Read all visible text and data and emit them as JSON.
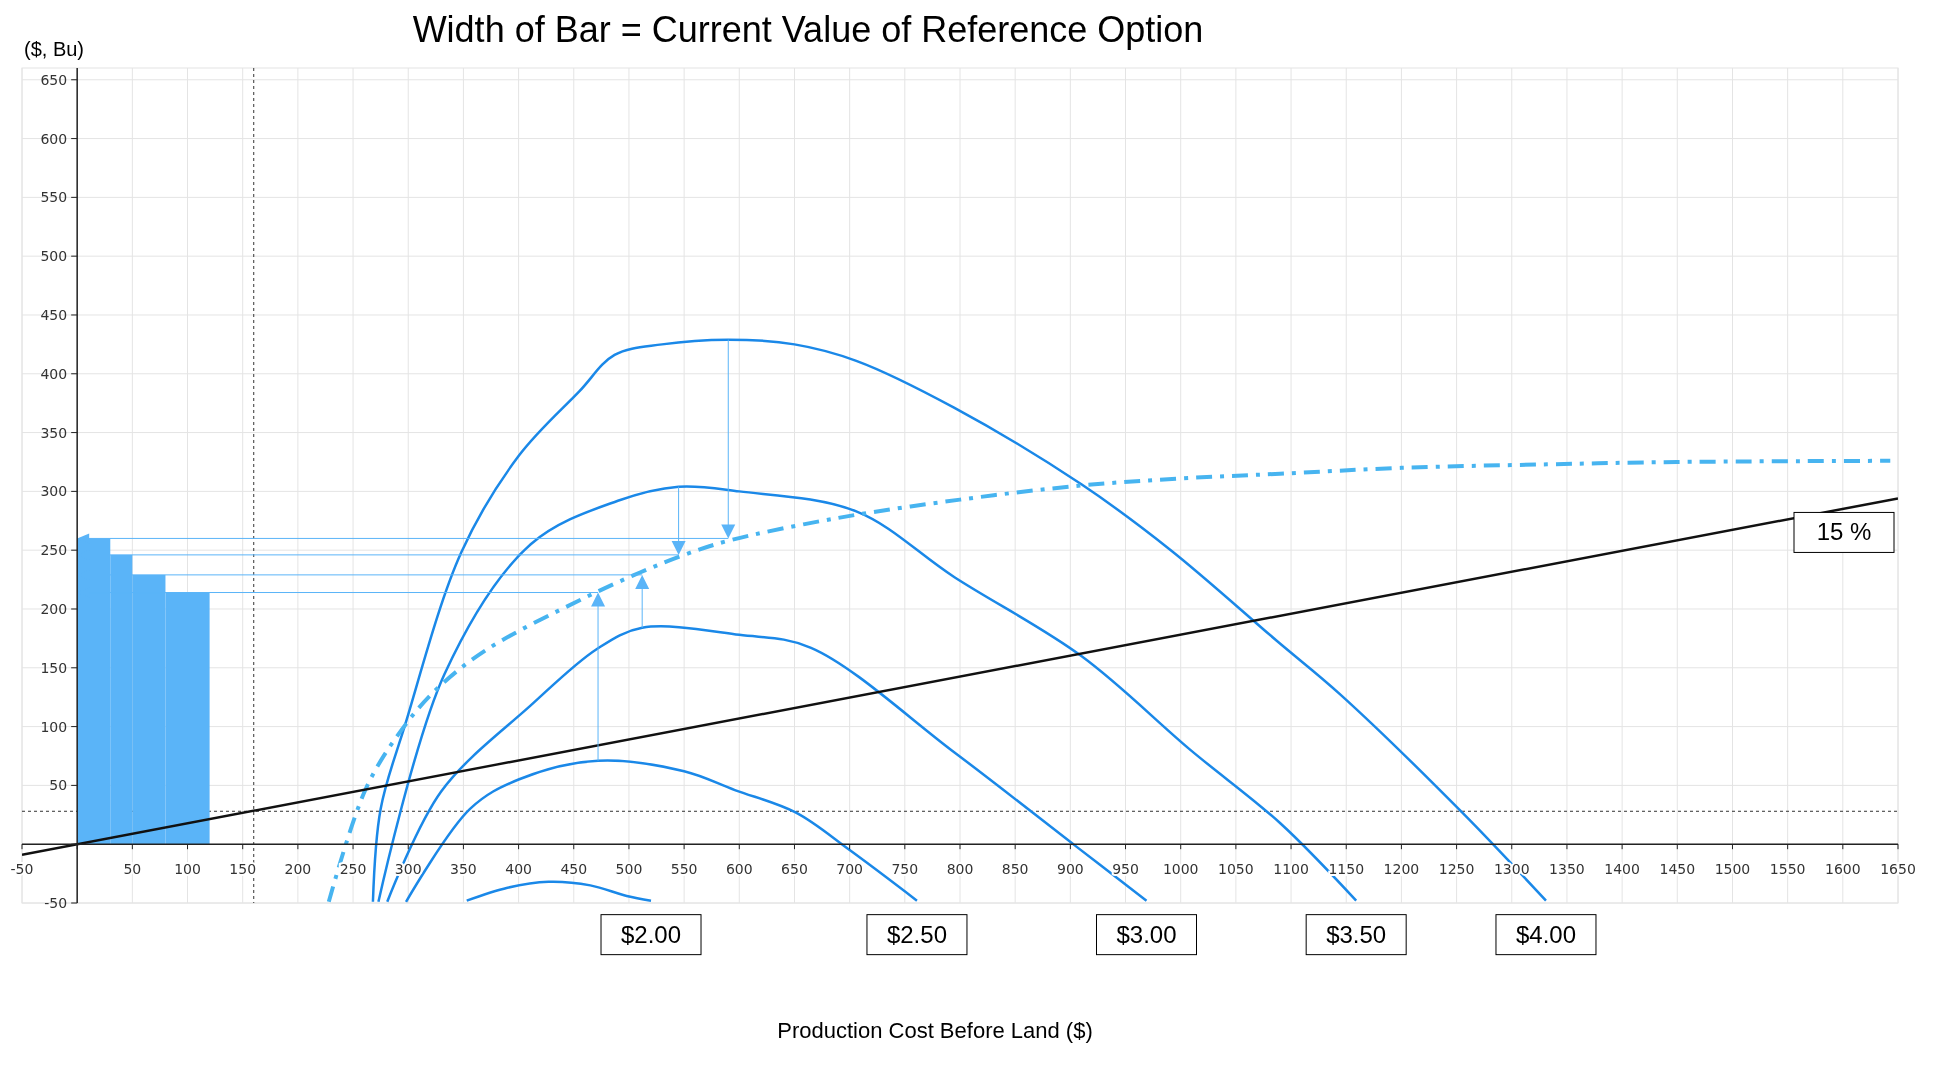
{
  "chart_data": {
    "type": "line",
    "title": "Width of Bar = Current Value of Reference Option",
    "xlabel": "Production Cost Before Land ($)",
    "ylabel": "($, Bu)",
    "xlim": [
      -50,
      1650
    ],
    "ylim": [
      -50,
      660
    ],
    "xticks": [
      -50,
      {
        "value": 0,
        "label": null
      },
      50,
      100,
      150,
      200,
      250,
      300,
      350,
      400,
      450,
      500,
      550,
      600,
      650,
      700,
      750,
      800,
      850,
      900,
      950,
      1000,
      1050,
      1100,
      1150,
      1200,
      1250,
      1300,
      1350,
      1400,
      1450,
      1500,
      1550,
      1600,
      1650
    ],
    "yticks": [
      -50,
      {
        "value": 0,
        "label": null
      },
      50,
      100,
      150,
      200,
      250,
      300,
      350,
      400,
      450,
      500,
      550,
      600,
      650
    ],
    "grid": true,
    "series": [
      {
        "type": "histogram",
        "color": "#5ab4f8",
        "bins": [
          0,
          30,
          50,
          80,
          120
        ],
        "values": [
          260,
          246,
          229,
          214
        ]
      },
      {
        "name": "$2.00",
        "color": "#1a88e8",
        "x": [
          353,
          390,
          427,
          465,
          498,
          520
        ],
        "values": [
          -48,
          -37,
          -32,
          -35,
          -44,
          -48
        ]
      },
      {
        "name": "$2.50",
        "color": "#1a88e8",
        "x": [
          298,
          356,
          400,
          472,
          550,
          596,
          651,
          700,
          761
        ],
        "values": [
          -49,
          30,
          55,
          71,
          62,
          46,
          27,
          -5,
          -48
        ]
      },
      {
        "name": "$3.00",
        "color": "#1a88e8",
        "x": [
          281,
          330,
          411,
          471,
          512,
          600,
          665,
          795,
          904,
          969
        ],
        "values": [
          -49,
          45,
          118,
          166,
          184,
          178,
          167,
          78,
          -1,
          -48
        ]
      },
      {
        "name": "$3.50",
        "color": "#1a88e8",
        "x": [
          273,
          333,
          411,
          490,
          545,
          600,
          706,
          795,
          910,
          1009,
          1090,
          1159
        ],
        "values": [
          -49,
          145,
          255,
          292,
          304,
          300,
          283,
          227,
          160,
          80,
          18,
          -48
        ]
      },
      {
        "name": "$4.00",
        "color": "#1a88e8",
        "x": [
          268,
          275,
          297,
          348,
          400,
          455,
          487,
          530,
          590,
          650,
          706,
          795,
          910,
          991,
          1087,
          1145,
          1255,
          1331
        ],
        "values": [
          -49,
          30,
          101,
          248,
          330,
          385,
          416,
          425,
          429,
          425,
          411,
          371,
          306,
          250,
          173,
          127,
          27,
          -48
        ]
      },
      {
        "color": "#47b4f0",
        "line_style": "dashed",
        "x": [
          228,
          262,
          297,
          327,
          372,
          461,
          510,
          550,
          590,
          687,
          800,
          910,
          1000,
          1090,
          1200,
          1332,
          1450,
          1643
        ],
        "values": [
          -49,
          48,
          101,
          133,
          166,
          210,
          231,
          246,
          258,
          277,
          293,
          305,
          311,
          315,
          320,
          323,
          325,
          326
        ]
      },
      {
        "name": "15 %",
        "color": "#111111",
        "x": [
          -50,
          1650
        ],
        "values": [
          -9,
          294
        ]
      }
    ],
    "ref_lines": [
      {
        "axis": "x",
        "value": 160,
        "color": "#333333",
        "line_style": "dotted"
      },
      {
        "axis": "y",
        "value": 28,
        "color": "#333333",
        "line_style": "dotted"
      }
    ]
  }
}
